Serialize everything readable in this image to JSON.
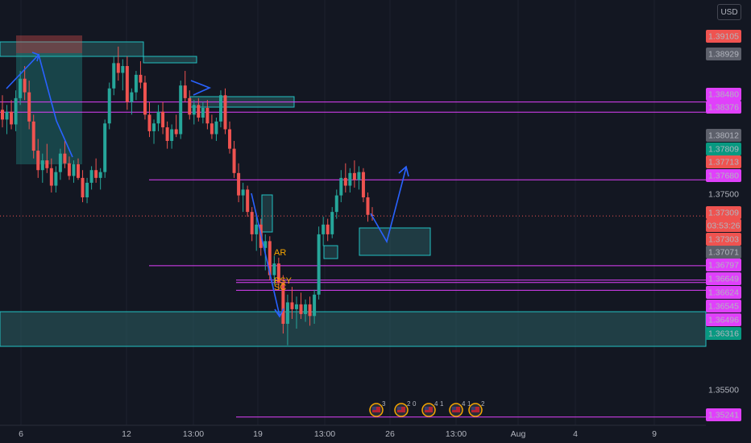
{
  "currency": "USD",
  "colors": {
    "background": "#131722",
    "up": "#26a69a",
    "down": "#ef5350",
    "magenta": "#e040fb",
    "zone_border": "#22c1c3",
    "zone_fill": "#2c5f63",
    "arrow": "#2962ff",
    "annotation": "#f7a600"
  },
  "chart_data": {
    "type": "candlestick",
    "ylim": [
      1.3514,
      1.3938
    ],
    "x_ticks": [
      "6",
      "12",
      "13:00",
      "19",
      "13:00",
      "26",
      "13:00",
      "Aug",
      "4",
      "9"
    ],
    "price_labels": [
      {
        "value": "1.39105",
        "style": "red"
      },
      {
        "value": "1.38929",
        "style": "gray"
      },
      {
        "value": "1.38480",
        "style": "magenta"
      },
      {
        "value": "1.38376",
        "style": "magenta"
      },
      {
        "value": "1.38012",
        "style": "gray"
      },
      {
        "value": "1.37809",
        "style": "green"
      },
      {
        "value": "1.37713",
        "style": "red"
      },
      {
        "value": "1.37680",
        "style": "magenta"
      },
      {
        "value": "1.37500",
        "style": "plain"
      },
      {
        "value": "1.37309",
        "style": "red"
      },
      {
        "value": "03:53:26",
        "style": "red-sub"
      },
      {
        "value": "1.37303",
        "style": "red"
      },
      {
        "value": "1.37071",
        "style": "gray"
      },
      {
        "value": "1.36797",
        "style": "magenta"
      },
      {
        "value": "1.36649",
        "style": "magenta"
      },
      {
        "value": "1.36624",
        "style": "magenta"
      },
      {
        "value": "1.36545",
        "style": "magenta"
      },
      {
        "value": "1.36496",
        "style": "magenta"
      },
      {
        "value": "1.36316",
        "style": "green"
      },
      {
        "value": "1.35500",
        "style": "plain"
      },
      {
        "value": "1.35241",
        "style": "magenta"
      }
    ],
    "horizontal_levels": [
      1.3848,
      1.38376,
      1.3768,
      1.36797,
      1.36649,
      1.36624,
      1.36545,
      1.35241
    ],
    "last_price": 1.37309,
    "annotations": [
      "AR",
      "PSY",
      "SC"
    ],
    "event_badges": [
      "3",
      "2",
      "0",
      "4",
      "1",
      "4",
      "1",
      "2"
    ],
    "candles": [
      [
        1.384,
        1.3855,
        1.3822,
        1.383
      ],
      [
        1.383,
        1.3845,
        1.3815,
        1.3838
      ],
      [
        1.3838,
        1.385,
        1.382,
        1.3825
      ],
      [
        1.3825,
        1.386,
        1.3818,
        1.3852
      ],
      [
        1.3852,
        1.388,
        1.3845,
        1.3872
      ],
      [
        1.3872,
        1.3885,
        1.385,
        1.3858
      ],
      [
        1.3858,
        1.387,
        1.382,
        1.3828
      ],
      [
        1.3828,
        1.3835,
        1.379,
        1.3798
      ],
      [
        1.3798,
        1.381,
        1.377,
        1.3778
      ],
      [
        1.3778,
        1.3795,
        1.3765,
        1.3788
      ],
      [
        1.3788,
        1.3805,
        1.3775,
        1.378
      ],
      [
        1.378,
        1.379,
        1.3755,
        1.3762
      ],
      [
        1.3762,
        1.3782,
        1.3755,
        1.3776
      ],
      [
        1.3776,
        1.38,
        1.3768,
        1.3795
      ],
      [
        1.3795,
        1.3808,
        1.378,
        1.3785
      ],
      [
        1.3785,
        1.3792,
        1.3768,
        1.3772
      ],
      [
        1.3772,
        1.3788,
        1.3765,
        1.3784
      ],
      [
        1.3784,
        1.379,
        1.3768,
        1.377
      ],
      [
        1.377,
        1.3778,
        1.3745,
        1.375
      ],
      [
        1.375,
        1.377,
        1.3744,
        1.3765
      ],
      [
        1.3765,
        1.3782,
        1.3758,
        1.3778
      ],
      [
        1.3778,
        1.379,
        1.3765,
        1.377
      ],
      [
        1.377,
        1.378,
        1.3758,
        1.3776
      ],
      [
        1.3776,
        1.383,
        1.377,
        1.3826
      ],
      [
        1.3826,
        1.3868,
        1.382,
        1.3862
      ],
      [
        1.3862,
        1.3895,
        1.3855,
        1.3888
      ],
      [
        1.3888,
        1.3905,
        1.387,
        1.3878
      ],
      [
        1.3878,
        1.3892,
        1.386,
        1.3885
      ],
      [
        1.3885,
        1.3895,
        1.384,
        1.3848
      ],
      [
        1.3848,
        1.3862,
        1.3835,
        1.3858
      ],
      [
        1.3858,
        1.388,
        1.385,
        1.3876
      ],
      [
        1.3876,
        1.389,
        1.3862,
        1.3868
      ],
      [
        1.3868,
        1.3875,
        1.383,
        1.3835
      ],
      [
        1.3835,
        1.3848,
        1.3812,
        1.3818
      ],
      [
        1.3818,
        1.383,
        1.3805,
        1.3826
      ],
      [
        1.3826,
        1.3845,
        1.3818,
        1.3838
      ],
      [
        1.3838,
        1.3848,
        1.3815,
        1.3822
      ],
      [
        1.3822,
        1.3828,
        1.38,
        1.3808
      ],
      [
        1.3808,
        1.3825,
        1.38,
        1.382
      ],
      [
        1.382,
        1.3835,
        1.3812,
        1.3815
      ],
      [
        1.3815,
        1.387,
        1.381,
        1.3865
      ],
      [
        1.3865,
        1.388,
        1.3848,
        1.3852
      ],
      [
        1.3852,
        1.386,
        1.383,
        1.3835
      ],
      [
        1.3835,
        1.385,
        1.3825,
        1.3845
      ],
      [
        1.3845,
        1.3852,
        1.3828,
        1.3832
      ],
      [
        1.3832,
        1.3848,
        1.3826,
        1.3842
      ],
      [
        1.3842,
        1.385,
        1.382,
        1.3826
      ],
      [
        1.3826,
        1.3835,
        1.381,
        1.3815
      ],
      [
        1.3815,
        1.3832,
        1.3808,
        1.3828
      ],
      [
        1.3828,
        1.386,
        1.3822,
        1.3855
      ],
      [
        1.3855,
        1.3862,
        1.3815,
        1.382
      ],
      [
        1.382,
        1.3828,
        1.3795,
        1.38
      ],
      [
        1.38,
        1.3808,
        1.377,
        1.3775
      ],
      [
        1.3775,
        1.3785,
        1.3745,
        1.3752
      ],
      [
        1.3752,
        1.3765,
        1.3735,
        1.3758
      ],
      [
        1.3758,
        1.3762,
        1.373,
        1.3735
      ],
      [
        1.3735,
        1.374,
        1.3705,
        1.3712
      ],
      [
        1.3712,
        1.373,
        1.3695,
        1.3722
      ],
      [
        1.3722,
        1.3728,
        1.369,
        1.3698
      ],
      [
        1.3698,
        1.3712,
        1.3675,
        1.3705
      ],
      [
        1.3705,
        1.371,
        1.3665,
        1.367
      ],
      [
        1.367,
        1.369,
        1.366,
        1.3682
      ],
      [
        1.3682,
        1.3688,
        1.3655,
        1.3662
      ],
      [
        1.3662,
        1.367,
        1.361,
        1.362
      ],
      [
        1.362,
        1.365,
        1.3598,
        1.3642
      ],
      [
        1.3642,
        1.3658,
        1.3625,
        1.3635
      ],
      [
        1.3635,
        1.3648,
        1.3615,
        1.364
      ],
      [
        1.364,
        1.3652,
        1.3625,
        1.363
      ],
      [
        1.363,
        1.3645,
        1.3622,
        1.364
      ],
      [
        1.364,
        1.3648,
        1.3618,
        1.3628
      ],
      [
        1.3628,
        1.3655,
        1.362,
        1.365
      ],
      [
        1.365,
        1.372,
        1.3645,
        1.3712
      ],
      [
        1.3712,
        1.373,
        1.37,
        1.3722
      ],
      [
        1.3722,
        1.3728,
        1.3705,
        1.3712
      ],
      [
        1.3712,
        1.374,
        1.3708,
        1.3735
      ],
      [
        1.3735,
        1.3758,
        1.3728,
        1.3752
      ],
      [
        1.3752,
        1.3778,
        1.3745,
        1.377
      ],
      [
        1.377,
        1.3785,
        1.3755,
        1.3762
      ],
      [
        1.3762,
        1.378,
        1.3755,
        1.3775
      ],
      [
        1.3775,
        1.3788,
        1.376,
        1.3768
      ],
      [
        1.3768,
        1.3782,
        1.3758,
        1.3776
      ],
      [
        1.3776,
        1.378,
        1.3745,
        1.375
      ],
      [
        1.375,
        1.3755,
        1.3725,
        1.3732
      ],
      [
        1.3732,
        1.374,
        1.3726,
        1.3731
      ]
    ]
  }
}
